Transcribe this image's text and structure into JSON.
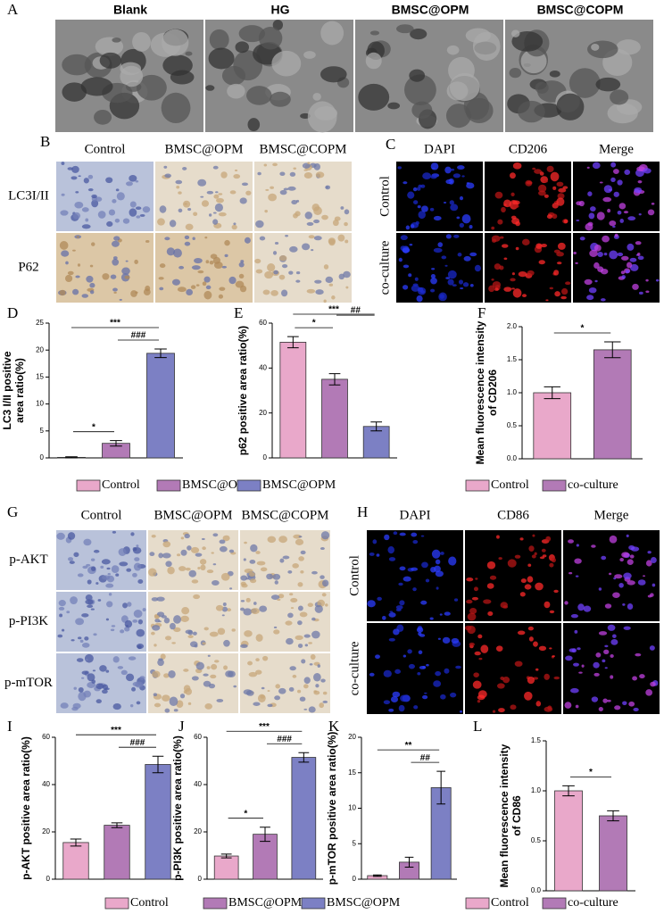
{
  "panel_labels": [
    "A",
    "B",
    "C",
    "D",
    "E",
    "F",
    "G",
    "H",
    "I",
    "J",
    "K",
    "L"
  ],
  "panel_a": {
    "titles": [
      "Blank",
      "HG",
      "BMSC@OPM",
      "BMSC@COPM"
    ]
  },
  "panel_b": {
    "columns": [
      "Control",
      "BMSC@OPM",
      "BMSC@COPM"
    ],
    "rows": [
      "LC3I/II",
      "P62"
    ]
  },
  "panel_c": {
    "columns": [
      "DAPI",
      "CD206",
      "Merge"
    ],
    "rows": [
      "Control",
      "co-culture"
    ]
  },
  "panel_g": {
    "columns": [
      "Control",
      "BMSC@OPM",
      "BMSC@COPM"
    ],
    "rows": [
      "p-AKT",
      "p-PI3K",
      "p-mTOR"
    ]
  },
  "panel_h": {
    "columns": [
      "DAPI",
      "CD86",
      "Merge"
    ],
    "rows": [
      "Control",
      "co-culture"
    ]
  },
  "chart_data": [
    {
      "type": "bar",
      "y_label": [
        "LC3 I/II positive",
        "area ratio(%)"
      ],
      "categories": [
        "Control",
        "BMSC@OPM",
        "BMSC@OPM"
      ],
      "colors": [
        "#e9a8ca",
        "#b27ab6",
        "#7c80c4"
      ],
      "values": [
        0.1,
        2.7,
        19.4
      ],
      "errors": [
        0.1,
        0.5,
        0.8
      ],
      "ylim": [
        0,
        25
      ],
      "yticks": [
        0,
        5,
        10,
        15,
        20,
        25
      ],
      "annotations": [
        {
          "text": "*",
          "span": [
            0,
            1
          ]
        },
        {
          "text": "***",
          "span": [
            0,
            2
          ]
        },
        {
          "text": "###",
          "span": [
            1,
            2
          ]
        }
      ]
    },
    {
      "type": "bar",
      "y_label": [
        "p62 positive area ratio(%)"
      ],
      "categories": [
        "Control",
        "BMSC@OPM",
        "BMSC@OPM"
      ],
      "colors": [
        "#e9a8ca",
        "#b27ab6",
        "#7c80c4"
      ],
      "values": [
        51.5,
        35,
        14
      ],
      "errors": [
        2.5,
        2.5,
        2
      ],
      "ylim": [
        0,
        60
      ],
      "yticks": [
        0,
        20,
        40,
        60
      ],
      "annotations": [
        {
          "text": "*",
          "span": [
            0,
            1
          ]
        },
        {
          "text": "***",
          "span": [
            0,
            2
          ]
        },
        {
          "text": "##",
          "span": [
            1,
            2
          ]
        }
      ]
    },
    {
      "type": "bar",
      "y_label": [
        "Mean fluorescence intensity",
        "of CD206"
      ],
      "categories": [
        "Control",
        "co-culture"
      ],
      "colors": [
        "#e9a8ca",
        "#b27ab6"
      ],
      "values": [
        1.0,
        1.65
      ],
      "errors": [
        0.09,
        0.12
      ],
      "ylim": [
        0,
        2
      ],
      "yticks": [
        {
          "value": 0,
          "label": "0.0"
        },
        0.5,
        {
          "value": 1,
          "label": "1.0"
        },
        1.5,
        {
          "value": 2,
          "label": "2.0"
        }
      ],
      "annotations": [
        {
          "text": "*",
          "span": [
            0,
            1
          ]
        }
      ]
    },
    {
      "type": "bar",
      "y_label": [
        "p-AKT positive area ratio(%)"
      ],
      "categories": [
        "Control",
        "BMSC@OPM",
        "BMSC@OPM"
      ],
      "colors": [
        "#e9a8ca",
        "#b27ab6",
        "#7c80c4"
      ],
      "values": [
        15.5,
        22.8,
        48.5
      ],
      "errors": [
        1.5,
        1,
        3.5
      ],
      "ylim": [
        0,
        60
      ],
      "yticks": [
        0,
        20,
        40,
        60
      ],
      "annotations": [
        {
          "text": "***",
          "span": [
            0,
            2
          ]
        },
        {
          "text": "###",
          "span": [
            1,
            2
          ]
        }
      ]
    },
    {
      "type": "bar",
      "y_label": [
        "p-PI3K positive area ratio(%)"
      ],
      "categories": [
        "Control",
        "BMSC@OPM",
        "BMSC@OPM"
      ],
      "colors": [
        "#e9a8ca",
        "#b27ab6",
        "#7c80c4"
      ],
      "values": [
        9.8,
        19,
        51.5
      ],
      "errors": [
        0.8,
        3,
        2
      ],
      "ylim": [
        0,
        60
      ],
      "yticks": [
        0,
        20,
        40,
        60
      ],
      "annotations": [
        {
          "text": "*",
          "span": [
            0,
            1
          ]
        },
        {
          "text": "***",
          "span": [
            0,
            2
          ]
        },
        {
          "text": "###",
          "span": [
            1,
            2
          ]
        }
      ]
    },
    {
      "type": "bar",
      "y_label": [
        "p-mTOR positive area ratio(%)"
      ],
      "categories": [
        "Control",
        "BMSC@OPM",
        "BMSC@OPM"
      ],
      "colors": [
        "#e9a8ca",
        "#b27ab6",
        "#7c80c4"
      ],
      "values": [
        0.5,
        2.4,
        12.9
      ],
      "errors": [
        0.1,
        0.7,
        2.3
      ],
      "ylim": [
        0,
        20
      ],
      "yticks": [
        0,
        5,
        10,
        15,
        20
      ],
      "annotations": [
        {
          "text": "**",
          "span": [
            0,
            2
          ]
        },
        {
          "text": "##",
          "span": [
            1,
            2
          ]
        }
      ]
    },
    {
      "type": "bar",
      "y_label": [
        "Mean fluorescence intensity",
        "of CD86"
      ],
      "categories": [
        "Control",
        "co-culture"
      ],
      "colors": [
        "#e9a8ca",
        "#b27ab6"
      ],
      "values": [
        1.0,
        0.75
      ],
      "errors": [
        0.05,
        0.05
      ],
      "ylim": [
        0,
        1.5
      ],
      "yticks": [
        {
          "value": 0,
          "label": "0.0"
        },
        0.5,
        {
          "value": 1,
          "label": "1.0"
        },
        1.5
      ],
      "annotations": [
        {
          "text": "*",
          "span": [
            0,
            1
          ]
        }
      ]
    }
  ]
}
